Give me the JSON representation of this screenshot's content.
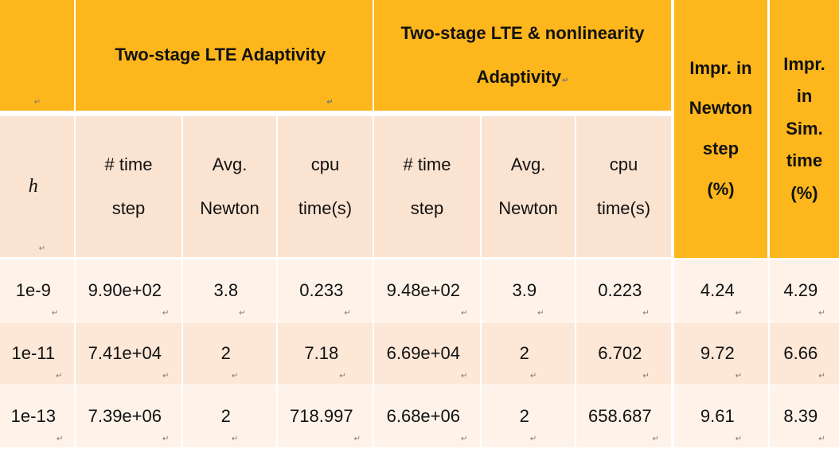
{
  "table": {
    "header": {
      "corner_mark": "↵",
      "group1": "Two-stage LTE Adaptivity",
      "group2_line1": "Two-stage LTE & nonlinearity",
      "group2_line2": "Adaptivity",
      "impr_newton": [
        "Impr. in",
        "Newton",
        "step",
        "(%)"
      ],
      "impr_sim": [
        "Impr.",
        "in",
        "Sim.",
        "time",
        "(%)"
      ]
    },
    "subheader": {
      "h": "h",
      "cols": [
        [
          "# time",
          "step"
        ],
        [
          "Avg.",
          "Newton"
        ],
        [
          "cpu",
          "time(s)"
        ],
        [
          "# time",
          "step"
        ],
        [
          "Avg.",
          "Newton"
        ],
        [
          "cpu",
          "time(s)"
        ]
      ]
    },
    "rows": [
      [
        "1e-9",
        "9.90e+02",
        "3.8",
        "0.233",
        "9.48e+02",
        "3.9",
        "0.223",
        "4.24",
        "4.29"
      ],
      [
        "1e-11",
        "7.41e+04",
        "2",
        "7.18",
        "6.69e+04",
        "2",
        "6.702",
        "9.72",
        "6.66"
      ],
      [
        "1e-13",
        "7.39e+06",
        "2",
        "718.997",
        "6.68e+06",
        "2",
        "658.687",
        "9.61",
        "8.39"
      ]
    ],
    "colors": {
      "header": "#fdb61c",
      "subheader": "#fbe3d2",
      "row_light": "#fff3e9",
      "row_mid": "#fde7d6"
    }
  }
}
